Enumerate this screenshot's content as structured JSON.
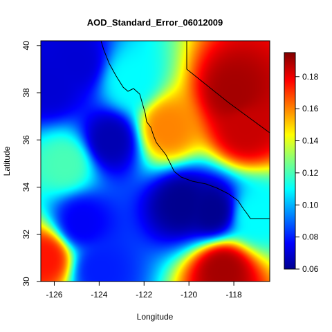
{
  "chart_data": {
    "type": "heatmap",
    "title": "AOD_Standard_Error_06012009",
    "xlabel": "Longitude",
    "ylabel": "Latitude",
    "xlim": [
      -126.6,
      -116.4
    ],
    "ylim": [
      30.0,
      40.2
    ],
    "x_ticks": [
      -126,
      -124,
      -122,
      -120,
      -118
    ],
    "x_tick_labels": [
      "-126",
      "-124",
      "-122",
      "-120",
      "-118"
    ],
    "y_ticks": [
      30,
      32,
      34,
      36,
      38,
      40
    ],
    "y_tick_labels": [
      "30",
      "32",
      "34",
      "36",
      "38",
      "40"
    ],
    "colorbar": {
      "range": [
        0.06,
        0.195
      ],
      "ticks": [
        0.06,
        0.08,
        0.1,
        0.12,
        0.14,
        0.16,
        0.18
      ],
      "tick_labels": [
        "0.06",
        "0.08",
        "0.10",
        "0.12",
        "0.14",
        "0.16",
        "0.18"
      ],
      "colormap": "jet"
    },
    "field_description_points": [
      {
        "lon": -120.3,
        "lat": 33.3,
        "value": 0.06
      },
      {
        "lon": -119.0,
        "lat": 33.0,
        "value": 0.06
      },
      {
        "lon": -123.5,
        "lat": 36.0,
        "value": 0.065
      },
      {
        "lon": -126.2,
        "lat": 38.3,
        "value": 0.07
      },
      {
        "lon": -125.0,
        "lat": 39.3,
        "value": 0.07
      },
      {
        "lon": -124.8,
        "lat": 32.5,
        "value": 0.075
      },
      {
        "lon": -124.0,
        "lat": 30.5,
        "value": 0.08
      },
      {
        "lon": -125.5,
        "lat": 35.0,
        "value": 0.12
      },
      {
        "lon": -122.6,
        "lat": 38.5,
        "value": 0.11
      },
      {
        "lon": -121.0,
        "lat": 36.5,
        "value": 0.16
      },
      {
        "lon": -118.0,
        "lat": 38.0,
        "value": 0.19
      },
      {
        "lon": -117.5,
        "lat": 36.5,
        "value": 0.185
      },
      {
        "lon": -126.4,
        "lat": 31.0,
        "value": 0.175
      },
      {
        "lon": -118.5,
        "lat": 30.5,
        "value": 0.19
      },
      {
        "lon": -117.0,
        "lat": 32.8,
        "value": 0.11
      }
    ]
  }
}
